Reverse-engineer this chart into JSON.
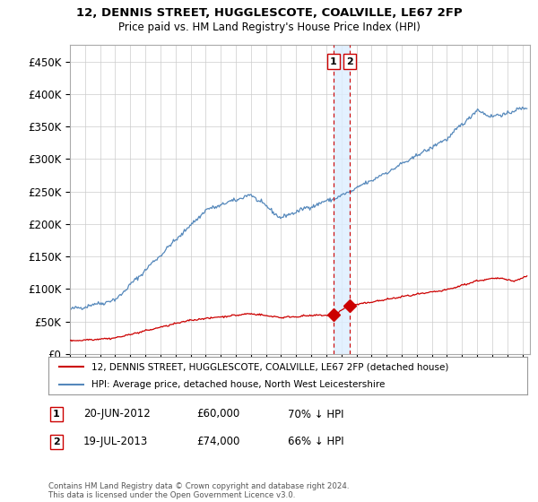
{
  "title": "12, DENNIS STREET, HUGGLESCOTE, COALVILLE, LE67 2FP",
  "subtitle": "Price paid vs. HM Land Registry's House Price Index (HPI)",
  "ylabel_ticks": [
    "£0",
    "£50K",
    "£100K",
    "£150K",
    "£200K",
    "£250K",
    "£300K",
    "£350K",
    "£400K",
    "£450K"
  ],
  "ytick_values": [
    0,
    50000,
    100000,
    150000,
    200000,
    250000,
    300000,
    350000,
    400000,
    450000
  ],
  "ylim": [
    0,
    475000
  ],
  "xlim_start": 1995.0,
  "xlim_end": 2025.5,
  "legend_line1": "12, DENNIS STREET, HUGGLESCOTE, COALVILLE, LE67 2FP (detached house)",
  "legend_line2": "HPI: Average price, detached house, North West Leicestershire",
  "transaction1_label": "1",
  "transaction1_date": "20-JUN-2012",
  "transaction1_price": "£60,000",
  "transaction1_hpi": "70% ↓ HPI",
  "transaction2_label": "2",
  "transaction2_date": "19-JUL-2013",
  "transaction2_price": "£74,000",
  "transaction2_hpi": "66% ↓ HPI",
  "footnote": "Contains HM Land Registry data © Crown copyright and database right 2024.\nThis data is licensed under the Open Government Licence v3.0.",
  "red_color": "#cc0000",
  "blue_color": "#5588bb",
  "vline_color": "#cc0000",
  "shade_color": "#ddeeff",
  "transaction1_x": 2012.47,
  "transaction2_x": 2013.55,
  "transaction1_y": 60000,
  "transaction2_y": 74000,
  "background_color": "#ffffff",
  "grid_color": "#cccccc"
}
